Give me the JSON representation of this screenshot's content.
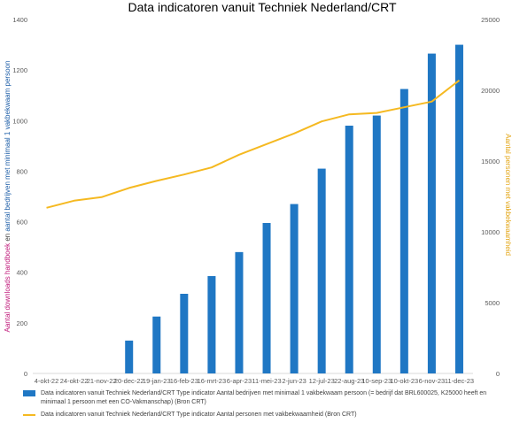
{
  "chart_data": {
    "type": "bar",
    "title": "Data indicatoren vanuit Techniek Nederland/CRT",
    "categories": [
      "4-okt-22",
      "24-okt-22",
      "21-nov-22",
      "20-dec-22",
      "19-jan-23",
      "16-feb-23",
      "16-mrt-23",
      "6-apr-23",
      "11-mei-23",
      "2-jun-23",
      "12-jul-23",
      "22-aug-23",
      "10-sep-23",
      "10-okt-23",
      "6-nov-23",
      "11-dec-23"
    ],
    "series": [
      {
        "name": "Data indicatoren vanuit Techniek Nederland/CRT Type indicator Aantal bedrijven met minimaal 1 vakbekwaam persoon (= bedrijf dat BRL600025, K25000 heeft en minimaal 1 persoon met een CO-Vakmanschap) (Bron CRT)",
        "kind": "bar",
        "axis": "left",
        "color": "#1f77c4",
        "values": [
          null,
          null,
          null,
          130,
          225,
          315,
          385,
          480,
          595,
          670,
          810,
          980,
          1020,
          1125,
          1265,
          1300
        ]
      },
      {
        "name": "Data indicatoren vanuit Techniek Nederland/CRT Type indicator Aantal personen met vakbekwaamheid (Bron CRT)",
        "kind": "line",
        "axis": "right",
        "color": "#f5b921",
        "values": [
          11700,
          12200,
          12450,
          13100,
          13600,
          14050,
          14550,
          15450,
          16200,
          16950,
          17800,
          18300,
          18400,
          18800,
          19200,
          20700
        ]
      }
    ],
    "ylabel_left": {
      "part1": "Aantal downloads handboek",
      "part2": " en ",
      "part3": "aantal bedrijven met minimaal 1 vakbekwaam persoon",
      "color1": "#c0187a",
      "color2": "#404040",
      "color3": "#1f5fa8"
    },
    "ylabel_right": "Aantal personen met vakbekwaamheid",
    "ylabel_right_color": "#e3a514",
    "ylim_left": [
      0,
      1400
    ],
    "ylim_right": [
      0,
      25000
    ],
    "yticks_left": [
      "0",
      "200",
      "400",
      "600",
      "800",
      "1000",
      "1200",
      "1400"
    ],
    "yticks_right": [
      "0",
      "5000",
      "10000",
      "15000",
      "20000",
      "25000"
    ],
    "grid": false,
    "legend_position": "bottom"
  }
}
